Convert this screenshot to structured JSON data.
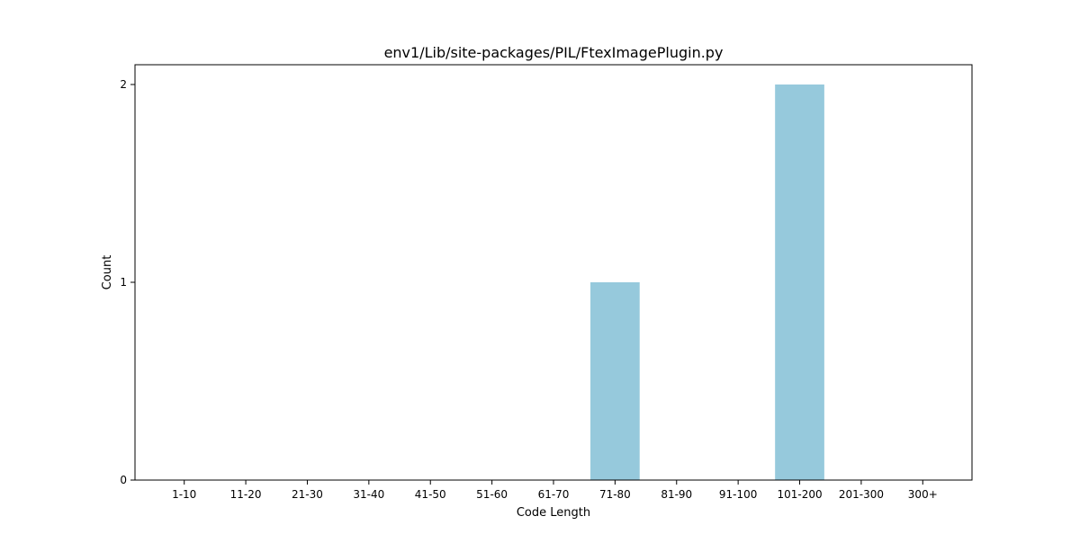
{
  "chart_data": {
    "type": "bar",
    "title": "env1/Lib/site-packages/PIL/FtexImagePlugin.py",
    "xlabel": "Code Length",
    "ylabel": "Count",
    "categories": [
      "1-10",
      "11-20",
      "21-30",
      "31-40",
      "41-50",
      "51-60",
      "61-70",
      "71-80",
      "81-90",
      "91-100",
      "101-200",
      "201-300",
      "300+"
    ],
    "values": [
      0,
      0,
      0,
      0,
      0,
      0,
      0,
      1,
      0,
      0,
      2,
      0,
      0
    ],
    "ylim": [
      0,
      2.1
    ],
    "yticks": [
      0,
      1,
      2
    ],
    "bar_color": "#96c9dc",
    "grid": false,
    "legend": "none"
  }
}
